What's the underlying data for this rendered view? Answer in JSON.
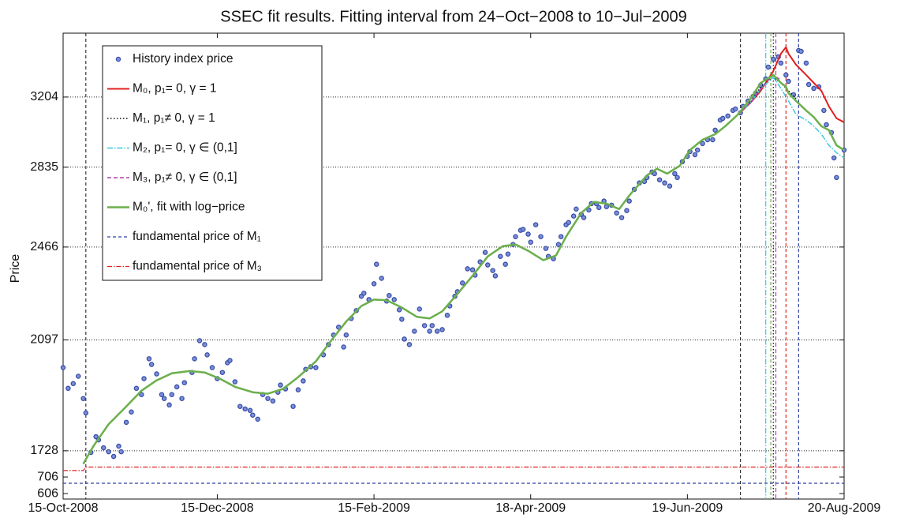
{
  "chart_data": {
    "type": "line",
    "title": "SSEC fit results. Fitting interval from 24−Oct−2008 to 10−Jul−2009",
    "ylabel": "Price",
    "xlim": [
      "2008-10-15",
      "2009-08-20"
    ],
    "xticks": [
      {
        "value": "2008-10-15",
        "label": "15-Oct-2008"
      },
      {
        "value": "2008-12-15",
        "label": "15-Dec-2008"
      },
      {
        "value": "2009-02-15",
        "label": "15-Feb-2009"
      },
      {
        "value": "2009-04-18",
        "label": "18-Apr-2009"
      },
      {
        "value": "2009-06-19",
        "label": "19-Jun-2009"
      },
      {
        "value": "2009-08-20",
        "label": "20-Aug-2009"
      }
    ],
    "yscale": "log",
    "ylim": [
      1683,
      3582
    ],
    "yticks": [
      1728,
      2097,
      2466,
      2835,
      3204
    ],
    "lower_axis": {
      "ylim": [
        573,
        773
      ],
      "yticks": [
        606,
        706
      ]
    },
    "grid": true,
    "legend": "upper left",
    "fit_window": [
      "2008-10-24",
      "2009-07-10"
    ],
    "scatter": {
      "name": "History index price",
      "color": "#3a4fa8",
      "x": [
        "2008-10-15",
        "2008-10-17",
        "2008-10-19",
        "2008-10-21",
        "2008-10-23",
        "2008-10-24",
        "2008-10-26",
        "2008-10-28",
        "2008-10-29",
        "2008-10-31",
        "2008-11-02",
        "2008-11-04",
        "2008-11-06",
        "2008-11-07",
        "2008-11-09",
        "2008-11-11",
        "2008-11-13",
        "2008-11-15",
        "2008-11-16",
        "2008-11-18",
        "2008-11-19",
        "2008-11-21",
        "2008-11-23",
        "2008-11-24",
        "2008-11-26",
        "2008-11-27",
        "2008-11-29",
        "2008-12-01",
        "2008-12-02",
        "2008-12-05",
        "2008-12-06",
        "2008-12-08",
        "2008-12-10",
        "2008-12-11",
        "2008-12-13",
        "2008-12-15",
        "2008-12-17",
        "2008-12-19",
        "2008-12-20",
        "2008-12-22",
        "2008-12-24",
        "2008-12-26",
        "2008-12-28",
        "2008-12-29",
        "2008-12-31",
        "2009-01-02",
        "2009-01-04",
        "2009-01-06",
        "2009-01-08",
        "2009-01-09",
        "2009-01-11",
        "2009-01-14",
        "2009-01-16",
        "2009-01-18",
        "2009-01-19",
        "2009-01-21",
        "2009-01-23",
        "2009-01-26",
        "2009-01-28",
        "2009-01-30",
        "2009-02-01",
        "2009-02-03",
        "2009-02-04",
        "2009-02-06",
        "2009-02-08",
        "2009-02-10",
        "2009-02-11",
        "2009-02-13",
        "2009-02-15",
        "2009-02-16",
        "2009-02-18",
        "2009-02-20",
        "2009-02-21",
        "2009-02-23",
        "2009-02-25",
        "2009-02-26",
        "2009-02-27",
        "2009-03-01",
        "2009-03-03",
        "2009-03-05",
        "2009-03-07",
        "2009-03-09",
        "2009-03-10",
        "2009-03-12",
        "2009-03-14",
        "2009-03-16",
        "2009-03-17",
        "2009-03-19",
        "2009-03-20",
        "2009-03-22",
        "2009-03-24",
        "2009-03-26",
        "2009-03-27",
        "2009-03-29",
        "2009-03-31",
        "2009-04-01",
        "2009-04-03",
        "2009-04-04",
        "2009-04-06",
        "2009-04-08",
        "2009-04-09",
        "2009-04-11",
        "2009-04-12",
        "2009-04-14",
        "2009-04-15",
        "2009-04-17",
        "2009-04-18",
        "2009-04-20",
        "2009-04-22",
        "2009-04-24",
        "2009-04-25",
        "2009-04-27",
        "2009-04-29",
        "2009-04-30",
        "2009-05-02",
        "2009-05-03",
        "2009-05-05",
        "2009-05-06",
        "2009-05-08",
        "2009-05-09",
        "2009-05-11",
        "2009-05-12",
        "2009-05-14",
        "2009-05-15",
        "2009-05-17",
        "2009-05-18",
        "2009-05-20",
        "2009-05-22",
        "2009-05-24",
        "2009-05-26",
        "2009-05-27",
        "2009-05-29",
        "2009-05-31",
        "2009-06-02",
        "2009-06-03",
        "2009-06-05",
        "2009-06-06",
        "2009-06-08",
        "2009-06-10",
        "2009-06-12",
        "2009-06-14",
        "2009-06-15",
        "2009-06-17",
        "2009-06-19",
        "2009-06-20",
        "2009-06-22",
        "2009-06-23",
        "2009-06-25",
        "2009-06-27",
        "2009-06-29",
        "2009-06-30",
        "2009-07-02",
        "2009-07-03",
        "2009-07-05",
        "2009-07-07",
        "2009-07-08",
        "2009-07-10",
        "2009-07-11",
        "2009-07-13",
        "2009-07-15",
        "2009-07-16",
        "2009-07-18",
        "2009-07-20",
        "2009-07-21",
        "2009-07-23",
        "2009-07-25",
        "2009-07-26",
        "2009-07-28",
        "2009-07-29",
        "2009-07-31",
        "2009-08-02",
        "2009-08-03",
        "2009-08-05",
        "2009-08-06",
        "2009-08-08",
        "2009-08-10",
        "2009-08-12",
        "2009-08-13",
        "2009-08-15",
        "2009-08-16",
        "2009-08-17",
        "2009-08-20"
      ],
      "values": [
        1998,
        1927,
        1943,
        1968,
        1893,
        1846,
        1723,
        1771,
        1761,
        1737,
        1725,
        1711,
        1742,
        1725,
        1816,
        1849,
        1927,
        1906,
        1960,
        2029,
        2009,
        1976,
        1906,
        1893,
        1872,
        1906,
        1932,
        1893,
        1946,
        1981,
        2029,
        2094,
        2080,
        2043,
        1998,
        1960,
        1981,
        2015,
        2023,
        1949,
        1867,
        1859,
        1854,
        1839,
        1826,
        1906,
        1893,
        1885,
        1914,
        1938,
        1925,
        1867,
        1922,
        1952,
        1992,
        2001,
        1998,
        2043,
        2080,
        2115,
        2144,
        2071,
        2115,
        2177,
        2207,
        2263,
        2275,
        2250,
        2313,
        2393,
        2335,
        2244,
        2266,
        2250,
        2210,
        2174,
        2100,
        2080,
        2129,
        2213,
        2150,
        2129,
        2150,
        2129,
        2135,
        2189,
        2225,
        2263,
        2281,
        2316,
        2374,
        2370,
        2348,
        2403,
        2443,
        2390,
        2367,
        2345,
        2426,
        2393,
        2436,
        2477,
        2511,
        2539,
        2543,
        2522,
        2487,
        2564,
        2511,
        2460,
        2426,
        2416,
        2477,
        2511,
        2564,
        2574,
        2603,
        2635,
        2610,
        2596,
        2631,
        2660,
        2660,
        2642,
        2672,
        2646,
        2653,
        2617,
        2596,
        2628,
        2672,
        2727,
        2758,
        2765,
        2784,
        2811,
        2803,
        2773,
        2758,
        2743,
        2803,
        2784,
        2862,
        2889,
        2913,
        2897,
        2921,
        2954,
        2974,
        2974,
        3024,
        3078,
        3087,
        3100,
        3130,
        3138,
        3117,
        3152,
        3182,
        3208,
        3226,
        3271,
        3307,
        3376,
        3423,
        3437,
        3400,
        3330,
        3293,
        3217,
        3475,
        3470,
        3400,
        3275,
        3253,
        3262,
        3130,
        3053,
        3011,
        2881,
        2784,
        2921
      ]
    },
    "series": [
      {
        "name": "M₀, p₁= 0, γ = 1",
        "color": "#e02020",
        "dash": "none",
        "width": 2,
        "tc": "2009-07-28",
        "x": [
          "2008-10-23",
          "2008-10-27",
          "2008-11-02",
          "2008-11-09",
          "2008-11-15",
          "2008-11-21",
          "2008-11-27",
          "2008-12-04",
          "2008-12-10",
          "2008-12-16",
          "2008-12-22",
          "2008-12-29",
          "2009-01-04",
          "2009-01-10",
          "2009-01-16",
          "2009-01-23",
          "2009-01-29",
          "2009-02-04",
          "2009-02-10",
          "2009-02-15",
          "2009-02-20",
          "2009-02-26",
          "2009-03-04",
          "2009-03-09",
          "2009-03-14",
          "2009-03-20",
          "2009-03-26",
          "2009-04-01",
          "2009-04-07",
          "2009-04-12",
          "2009-04-17",
          "2009-04-23",
          "2009-04-28",
          "2009-05-02",
          "2009-05-08",
          "2009-05-13",
          "2009-05-18",
          "2009-05-23",
          "2009-05-27",
          "2009-06-03",
          "2009-06-07",
          "2009-06-11",
          "2009-06-16",
          "2009-06-20",
          "2009-06-25",
          "2009-06-30",
          "2009-07-04",
          "2009-07-09",
          "2009-07-14",
          "2009-07-18",
          "2009-07-23",
          "2009-07-26",
          "2009-07-28",
          "2009-07-29",
          "2009-08-01",
          "2009-08-05",
          "2009-08-08",
          "2009-08-11",
          "2009-08-14",
          "2009-08-17",
          "2009-08-20"
        ],
        "values": [
          1689,
          1742,
          1810,
          1867,
          1919,
          1954,
          1978,
          1986,
          1981,
          1960,
          1932,
          1914,
          1909,
          1925,
          1965,
          2020,
          2094,
          2165,
          2225,
          2250,
          2247,
          2219,
          2183,
          2177,
          2204,
          2272,
          2345,
          2426,
          2470,
          2477,
          2450,
          2410,
          2430,
          2511,
          2617,
          2668,
          2660,
          2635,
          2698,
          2795,
          2827,
          2803,
          2842,
          2921,
          2974,
          3003,
          3045,
          3108,
          3173,
          3239,
          3353,
          3456,
          3495,
          3456,
          3390,
          3330,
          3284,
          3239,
          3152,
          3087,
          3066
        ]
      },
      {
        "name": "M₁, p₁≠ 0, γ = 1",
        "color": "#111111",
        "dash": "1.5,2.5",
        "width": 1.5,
        "tc": "2009-07-23",
        "x": [
          "2009-07-09",
          "2009-07-14",
          "2009-07-18",
          "2009-07-23",
          "2009-07-26",
          "2009-07-29",
          "2009-08-01"
        ],
        "values": [
          3108,
          3173,
          3262,
          3316,
          3284,
          3240,
          3195
        ]
      },
      {
        "name": "M₂, p₁= 0, γ ∈ (0,1]",
        "color": "#3cc8da",
        "dash": "7,2,1.5,2",
        "width": 1.5,
        "tc": "2009-07-20",
        "x": [
          "2009-07-09",
          "2009-07-14",
          "2009-07-18",
          "2009-07-23",
          "2009-07-26",
          "2009-07-29",
          "2009-08-01",
          "2009-08-05",
          "2009-08-08",
          "2009-08-11",
          "2009-08-14",
          "2009-08-17",
          "2009-08-20"
        ],
        "values": [
          3108,
          3173,
          3250,
          3316,
          3253,
          3182,
          3108,
          3078,
          3045,
          3003,
          2945,
          2907,
          2881
        ]
      },
      {
        "name": "M₃, p₁≠ 0, γ ∈ (0,1]",
        "color": "#b040b0",
        "dash": "5,3",
        "width": 1.5,
        "tc": "2009-07-24",
        "x": [
          "2009-07-09",
          "2009-07-14",
          "2009-07-18",
          "2009-07-23",
          "2009-07-26"
        ],
        "values": [
          3108,
          3173,
          3253,
          3330,
          3300
        ]
      },
      {
        "name": "M₀', fit with log−price",
        "color": "#6ab04c",
        "dash": "none",
        "width": 2.5,
        "tc": "2009-07-22",
        "x": [
          "2008-10-23",
          "2008-10-27",
          "2008-11-02",
          "2008-11-09",
          "2008-11-15",
          "2008-11-21",
          "2008-11-27",
          "2008-12-04",
          "2008-12-10",
          "2008-12-16",
          "2008-12-22",
          "2008-12-29",
          "2009-01-04",
          "2009-01-10",
          "2009-01-16",
          "2009-01-23",
          "2009-01-29",
          "2009-02-04",
          "2009-02-10",
          "2009-02-15",
          "2009-02-20",
          "2009-02-26",
          "2009-03-04",
          "2009-03-09",
          "2009-03-14",
          "2009-03-20",
          "2009-03-26",
          "2009-04-01",
          "2009-04-07",
          "2009-04-12",
          "2009-04-17",
          "2009-04-23",
          "2009-04-28",
          "2009-05-02",
          "2009-05-08",
          "2009-05-13",
          "2009-05-18",
          "2009-05-23",
          "2009-05-27",
          "2009-06-03",
          "2009-06-07",
          "2009-06-11",
          "2009-06-16",
          "2009-06-20",
          "2009-06-25",
          "2009-06-30",
          "2009-07-04",
          "2009-07-09",
          "2009-07-14",
          "2009-07-18",
          "2009-07-23",
          "2009-07-26",
          "2009-07-28",
          "2009-07-29",
          "2009-08-01",
          "2009-08-05",
          "2009-08-08",
          "2009-08-11",
          "2009-08-14",
          "2009-08-17",
          "2009-08-20"
        ],
        "values": [
          1689,
          1742,
          1810,
          1867,
          1919,
          1954,
          1978,
          1986,
          1981,
          1960,
          1932,
          1914,
          1909,
          1925,
          1965,
          2020,
          2094,
          2165,
          2225,
          2250,
          2247,
          2219,
          2183,
          2177,
          2204,
          2272,
          2345,
          2426,
          2470,
          2477,
          2450,
          2410,
          2430,
          2511,
          2617,
          2668,
          2660,
          2635,
          2698,
          2795,
          2827,
          2803,
          2842,
          2921,
          2974,
          3003,
          3045,
          3108,
          3195,
          3284,
          3330,
          3284,
          3262,
          3226,
          3182,
          3130,
          3094,
          3045,
          3024,
          2945,
          2921
        ]
      },
      {
        "name": "fundamental price of M₁",
        "color": "#3040a0",
        "dash": "4,3",
        "width": 1.2,
        "axis": "lower",
        "tc": "2009-08-02",
        "x": [
          "2008-10-15",
          "2009-08-20"
        ],
        "values": [
          668,
          668
        ]
      },
      {
        "name": "fundamental price of M₃",
        "color": "#e02020",
        "dash": "6,2,1.5,2",
        "width": 1.2,
        "axis": "lower",
        "x": [
          "2008-10-15",
          "2008-10-23",
          "2008-10-24",
          "2009-08-20"
        ],
        "values": [
          745,
          745,
          766,
          766
        ]
      }
    ]
  }
}
